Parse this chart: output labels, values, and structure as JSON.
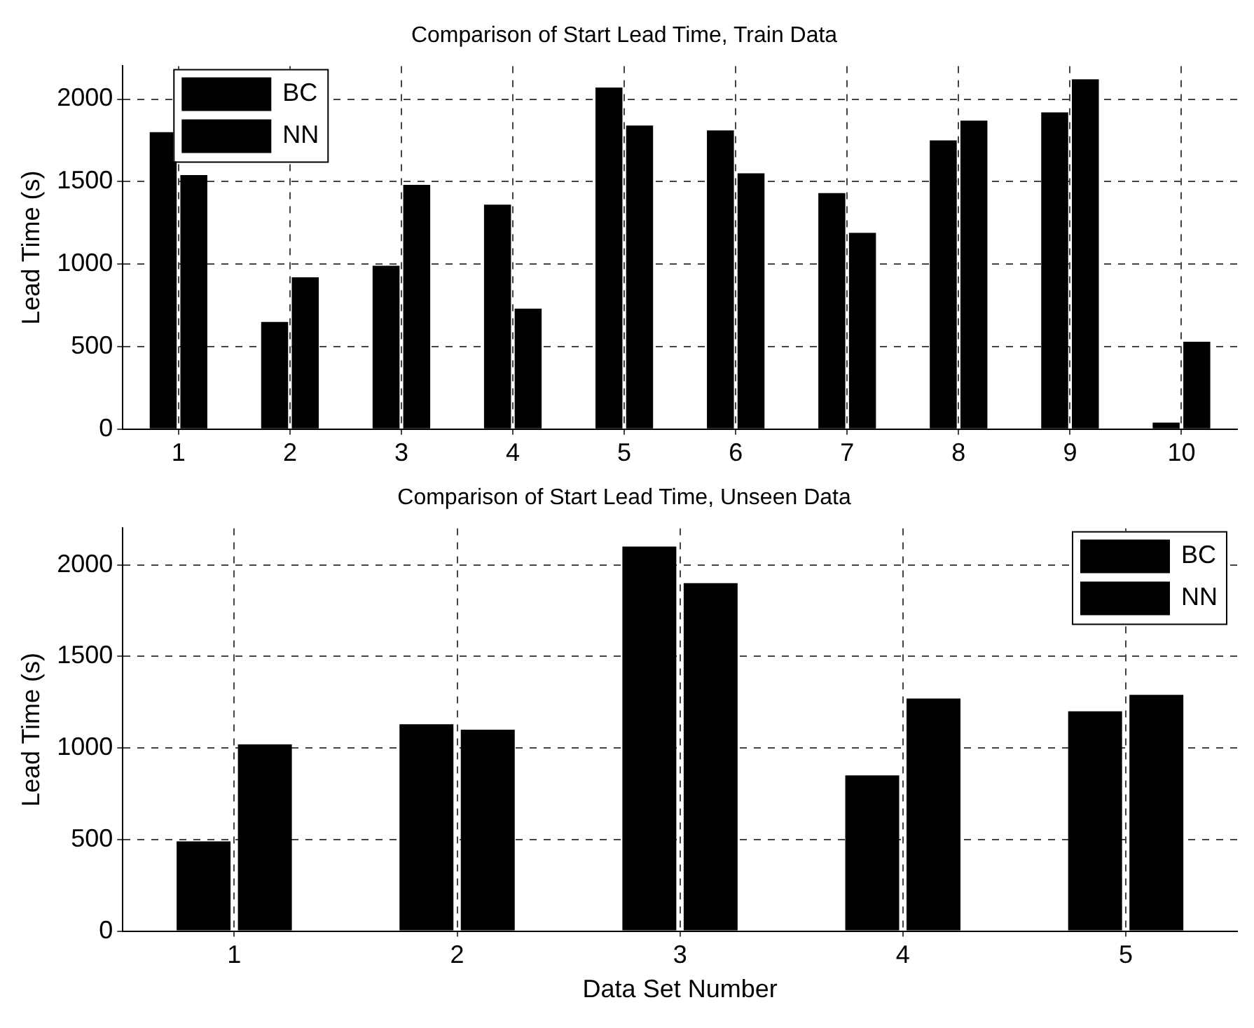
{
  "chart_data": [
    {
      "type": "bar",
      "title": "Comparison of Start Lead Time, Train Data",
      "ylabel": "Lead Time (s)",
      "categories": [
        "1",
        "2",
        "3",
        "4",
        "5",
        "6",
        "7",
        "8",
        "9",
        "10"
      ],
      "series": [
        {
          "name": "BC",
          "color": "#000000",
          "values": [
            1800,
            650,
            990,
            1360,
            2070,
            1810,
            1430,
            1750,
            1920,
            40
          ]
        },
        {
          "name": "NN",
          "color": "#000000",
          "values": [
            1540,
            920,
            1480,
            730,
            1840,
            1550,
            1190,
            1870,
            2120,
            530
          ]
        }
      ],
      "ylim": [
        0,
        2200
      ],
      "yticks": [
        0,
        500,
        1000,
        1500,
        2000
      ],
      "grid": true,
      "legend": "top left"
    },
    {
      "type": "bar",
      "title": "Comparison of Start Lead Time, Unseen Data",
      "xlabel": "Data Set Number",
      "ylabel": "Lead Time (s)",
      "categories": [
        "1",
        "2",
        "3",
        "4",
        "5"
      ],
      "series": [
        {
          "name": "BC",
          "color": "#000000",
          "values": [
            490,
            1130,
            2100,
            850,
            1200
          ]
        },
        {
          "name": "NN",
          "color": "#000000",
          "values": [
            1020,
            1100,
            1900,
            1270,
            1290
          ]
        }
      ],
      "ylim": [
        0,
        2200
      ],
      "yticks": [
        0,
        500,
        1000,
        1500,
        2000
      ],
      "grid": true,
      "legend": "top right"
    }
  ]
}
